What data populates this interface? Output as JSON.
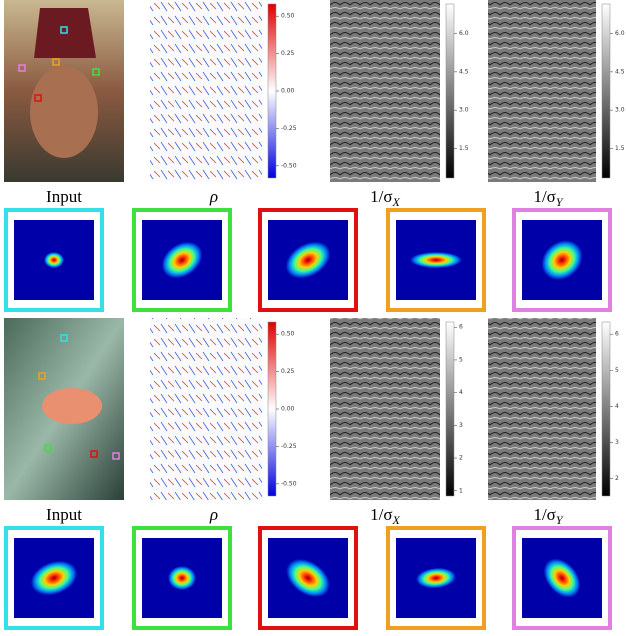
{
  "rows": [
    {
      "labels": [
        "Input",
        "ρ",
        {
          "main": "1/σ",
          "sub": "X"
        },
        {
          "main": "1/σ",
          "sub": "Y"
        }
      ],
      "colorbars": [
        [
          "0.50",
          "0.25",
          "0.00",
          "-0.25",
          "-0.50"
        ],
        [
          "6.0",
          "4.5",
          "3.0",
          "1.5"
        ],
        [
          "6.0",
          "4.5",
          "3.0",
          "1.5"
        ]
      ]
    },
    {
      "labels": [
        "Input",
        "ρ",
        {
          "main": "1/σ",
          "sub": "X"
        },
        {
          "main": "1/σ",
          "sub": "Y"
        }
      ],
      "colorbars": [
        [
          "0.50",
          "0.25",
          "0.00",
          "-0.25",
          "-0.50"
        ],
        [
          "6",
          "5",
          "4",
          "3",
          "2",
          "1"
        ],
        [
          "6",
          "5",
          "4",
          "3",
          "2"
        ]
      ]
    }
  ]
}
